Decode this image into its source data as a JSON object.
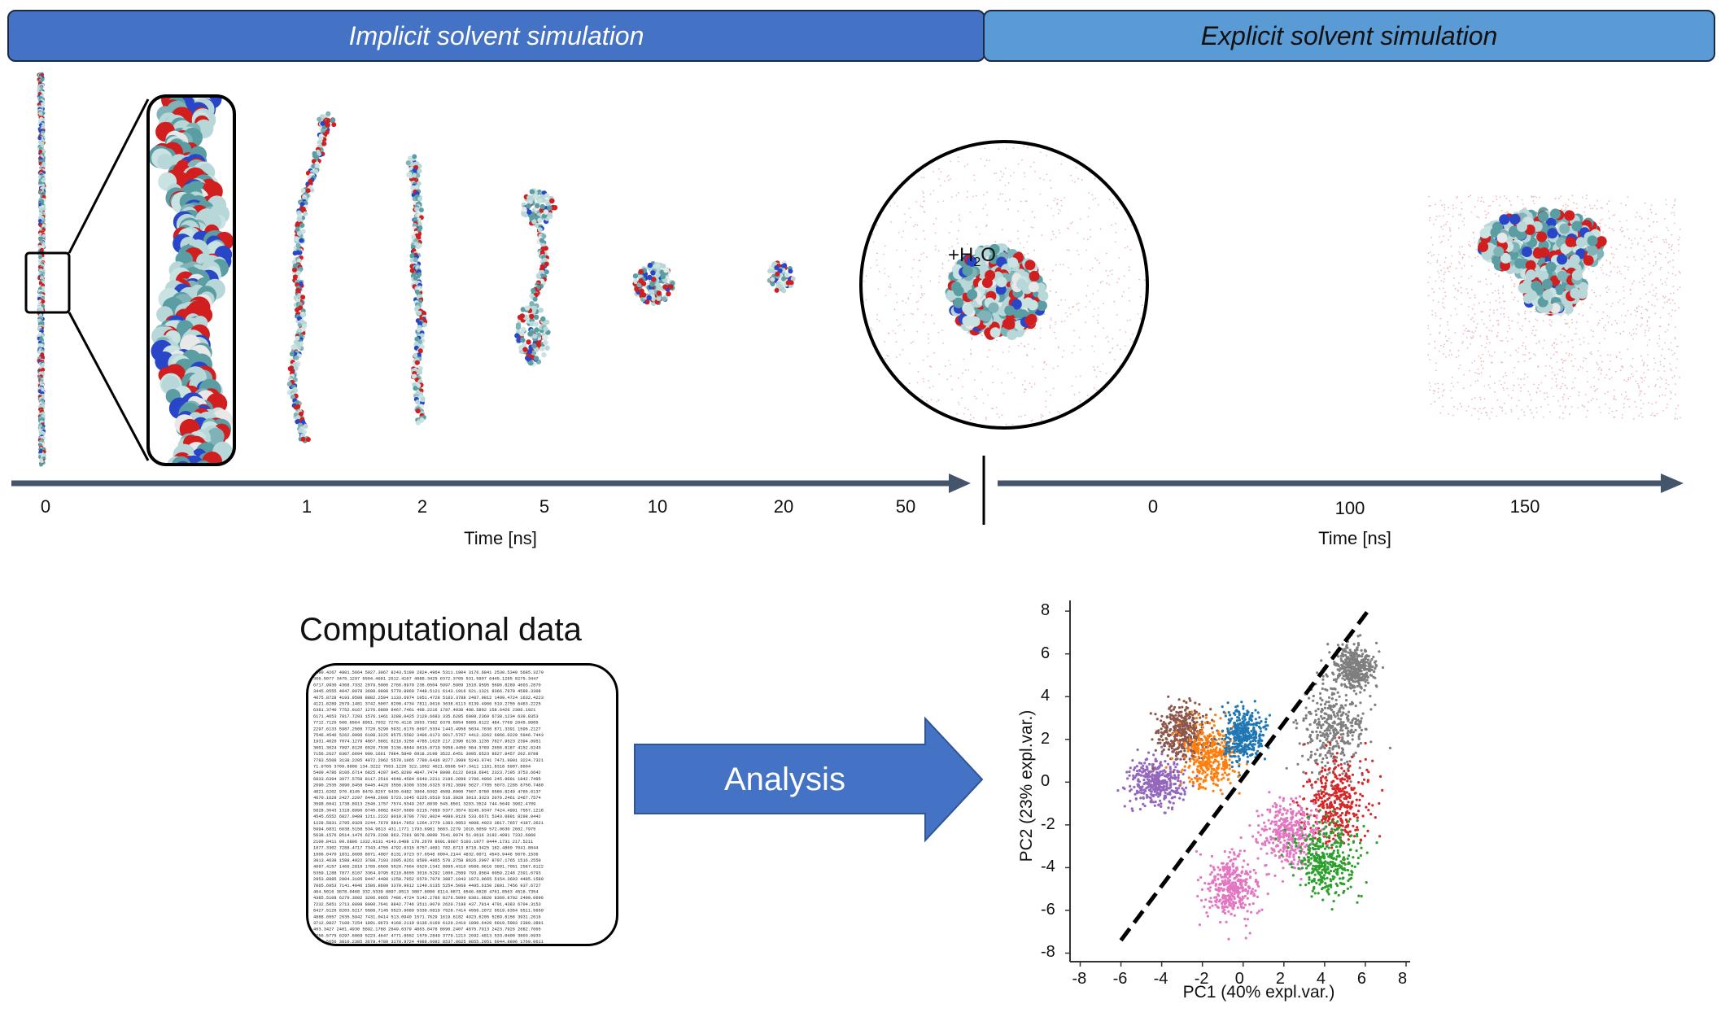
{
  "banners": {
    "implicit": "Implicit solvent simulation",
    "explicit": "Explicit solvent simulation"
  },
  "timeline": {
    "implicit_ticks": [
      "0",
      "1",
      "2",
      "5",
      "10",
      "20",
      "50"
    ],
    "explicit_ticks": [
      "0",
      "100",
      "150"
    ],
    "implicit_label": "Time [ns]",
    "explicit_label": "Time [ns]",
    "water_label": "+H",
    "water_sub": "2",
    "water_tail": "O"
  },
  "computational": {
    "title": "Computational data",
    "arrow_label": "Analysis"
  },
  "colors": {
    "implicit_banner": "#4472c4",
    "explicit_banner": "#5b9bd5",
    "timeline": "#44546a",
    "analysis_arrow": "#4472c4"
  },
  "chart_data": {
    "type": "scatter",
    "xlabel": "PC1 (40% expl.var.)",
    "ylabel": "PC2 (23% expl.var.)",
    "xlim": [
      -8.5,
      8.2
    ],
    "ylim": [
      -8.4,
      8.5
    ],
    "xticks": [
      -8,
      -6,
      -4,
      -2,
      0,
      2,
      4,
      6,
      8
    ],
    "yticks": [
      -8,
      -6,
      -4,
      -2,
      0,
      2,
      4,
      6,
      8
    ],
    "grid": false,
    "divider_line": {
      "from": [
        -6.0,
        -7.4
      ],
      "to": [
        6.2,
        8.1
      ],
      "style": "dashed",
      "color": "#000000"
    },
    "clusters": [
      {
        "color": "#9467bd",
        "center": [
          -4.3,
          0.0
        ],
        "spread": [
          0.9,
          0.7
        ]
      },
      {
        "color": "#8c564b",
        "center": [
          -3.0,
          2.3
        ],
        "spread": [
          0.8,
          0.8
        ]
      },
      {
        "color": "#ff7f0e",
        "center": [
          -1.6,
          1.2
        ],
        "spread": [
          0.8,
          0.9
        ]
      },
      {
        "color": "#1f77b4",
        "center": [
          0.0,
          2.2
        ],
        "spread": [
          0.6,
          0.8
        ]
      },
      {
        "color": "#7f7f7f",
        "center": [
          4.4,
          2.5
        ],
        "spread": [
          1.0,
          1.3
        ]
      },
      {
        "color": "#7f7f7f",
        "center": [
          5.5,
          5.4
        ],
        "spread": [
          0.6,
          0.6
        ]
      },
      {
        "color": "#d62728",
        "center": [
          4.6,
          -0.9
        ],
        "spread": [
          1.0,
          1.2
        ]
      },
      {
        "color": "#e377c2",
        "center": [
          2.3,
          -2.3
        ],
        "spread": [
          1.0,
          0.9
        ]
      },
      {
        "color": "#e377c2",
        "center": [
          -0.6,
          -4.9
        ],
        "spread": [
          0.7,
          0.9
        ]
      },
      {
        "color": "#2ca02c",
        "center": [
          4.1,
          -3.6
        ],
        "spread": [
          0.9,
          1.1
        ]
      }
    ]
  }
}
